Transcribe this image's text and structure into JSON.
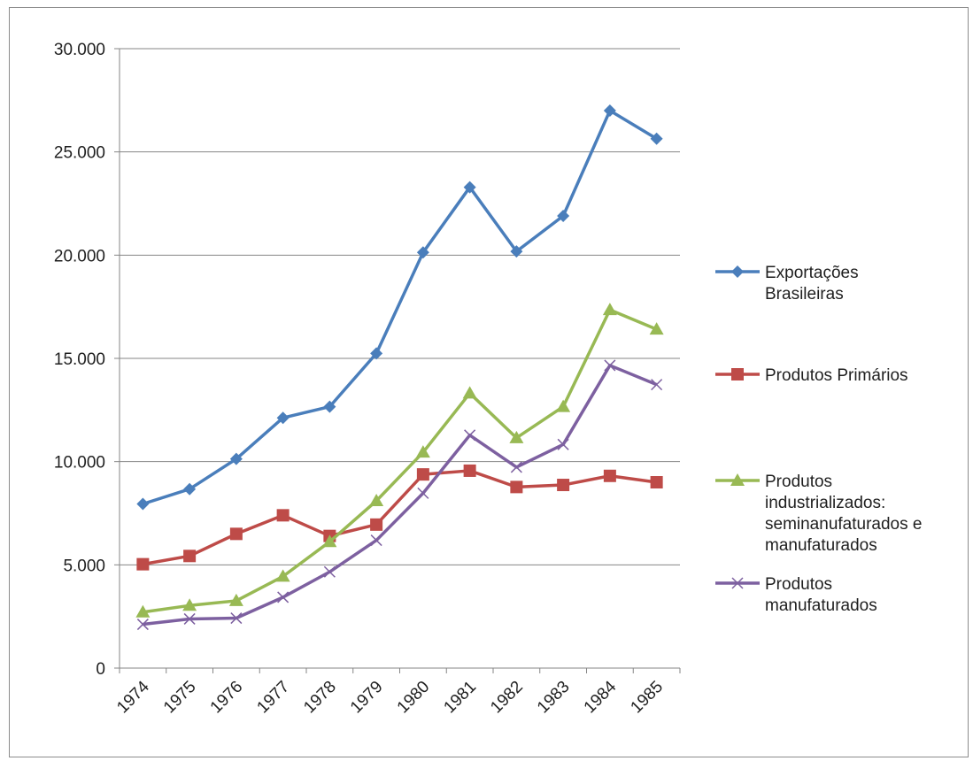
{
  "chart_data": {
    "type": "line",
    "title": "",
    "xlabel": "",
    "ylabel": "",
    "categories": [
      "1974",
      "1975",
      "1976",
      "1977",
      "1978",
      "1979",
      "1980",
      "1981",
      "1982",
      "1983",
      "1984",
      "1985"
    ],
    "ylim": [
      0,
      30000
    ],
    "yticks": [
      0,
      5000,
      10000,
      15000,
      20000,
      25000,
      30000
    ],
    "ytick_labels": [
      "0",
      "5.000",
      "10.000",
      "15.000",
      "20.000",
      "25.000",
      "30.000"
    ],
    "grid": "horizontal",
    "legend_position": "right",
    "series": [
      {
        "name": "Exportações Brasileiras",
        "legend_lines": [
          "Exportações",
          "Brasileiras"
        ],
        "color": "#4a7ebb",
        "marker": "diamond",
        "values": [
          7950,
          8670,
          10130,
          12120,
          12660,
          15240,
          20130,
          23290,
          20180,
          21900,
          27000,
          25640
        ]
      },
      {
        "name": "Produtos Primários",
        "legend_lines": [
          "Produtos Primários"
        ],
        "color": "#be4b48",
        "marker": "square",
        "values": [
          5030,
          5430,
          6500,
          7400,
          6400,
          6950,
          9380,
          9560,
          8770,
          8870,
          9310,
          9000
        ]
      },
      {
        "name": "Produtos industrializados: seminanufaturados e manufaturados",
        "legend_lines": [
          "Produtos",
          "industrializados:",
          "seminanufaturados e",
          "manufaturados"
        ],
        "color": "#98b954",
        "marker": "triangle",
        "values": [
          2710,
          3030,
          3260,
          4440,
          6120,
          8100,
          10450,
          13310,
          11150,
          12660,
          17350,
          16410
        ]
      },
      {
        "name": "Produtos manufaturados",
        "legend_lines": [
          "Produtos",
          "manufaturados"
        ],
        "color": "#7d60a0",
        "marker": "x",
        "values": [
          2120,
          2380,
          2420,
          3430,
          4660,
          6190,
          8470,
          11280,
          9730,
          10830,
          14660,
          13730
        ]
      }
    ]
  }
}
